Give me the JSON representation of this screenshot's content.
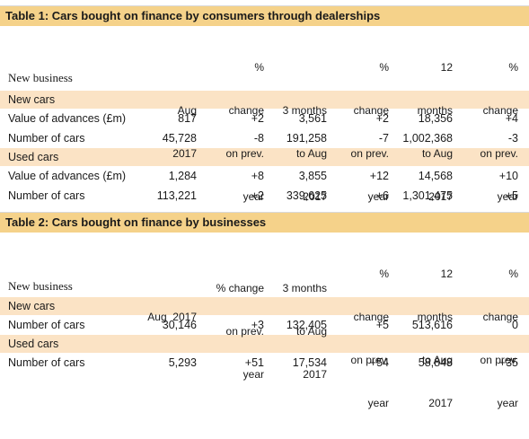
{
  "table1": {
    "title": "Table 1: Cars bought on finance by consumers through dealerships",
    "header_label": "New business",
    "columns": [
      [
        "",
        "Aug",
        "2017"
      ],
      [
        "%",
        "change",
        "on prev.",
        "year"
      ],
      [
        "3 months",
        "to Aug",
        "2017"
      ],
      [
        "%",
        "change",
        "on prev.",
        "year"
      ],
      [
        "12",
        "months",
        "to Aug",
        "2017"
      ],
      [
        "%",
        "change",
        "on prev.",
        "year"
      ]
    ],
    "sections": [
      {
        "name": "New cars",
        "rows": [
          {
            "label": "Value of advances (£m)",
            "values": [
              "817",
              "+2",
              "3,561",
              "+2",
              "18,356",
              "+4"
            ]
          },
          {
            "label": "Number of cars",
            "values": [
              "45,728",
              "-8",
              "191,258",
              "-7",
              "1,002,368",
              "-3"
            ]
          }
        ]
      },
      {
        "name": "Used cars",
        "rows": [
          {
            "label": "Value of advances (£m)",
            "values": [
              "1,284",
              "+8",
              "3,855",
              "+12",
              "14,568",
              "+10"
            ]
          },
          {
            "label": "Number of cars",
            "values": [
              "113,221",
              "+2",
              "339,625",
              "+6",
              "1,301,475",
              "+5"
            ]
          }
        ]
      }
    ]
  },
  "table2": {
    "title": "Table 2: Cars bought on finance by businesses",
    "header_label": "New business",
    "columns": [
      [
        "Aug  2017"
      ],
      [
        "% change",
        "on prev.",
        "year"
      ],
      [
        "3 months",
        "to Aug",
        "2017"
      ],
      [
        "%",
        "change",
        "on prev.",
        "year"
      ],
      [
        "12",
        "months",
        "to Aug",
        "2017"
      ],
      [
        "%",
        "change",
        "on prev.",
        "year"
      ]
    ],
    "sections": [
      {
        "name": "New cars",
        "rows": [
          {
            "label": "Number of cars",
            "values": [
              "30,146",
              "+3",
              "132,405",
              "+5",
              "513,616",
              "0"
            ]
          }
        ]
      },
      {
        "name": "Used cars",
        "rows": [
          {
            "label": "Number of cars",
            "values": [
              "5,293",
              "+51",
              "17,534",
              "+54",
              "58,848",
              "+35"
            ]
          }
        ]
      }
    ]
  }
}
